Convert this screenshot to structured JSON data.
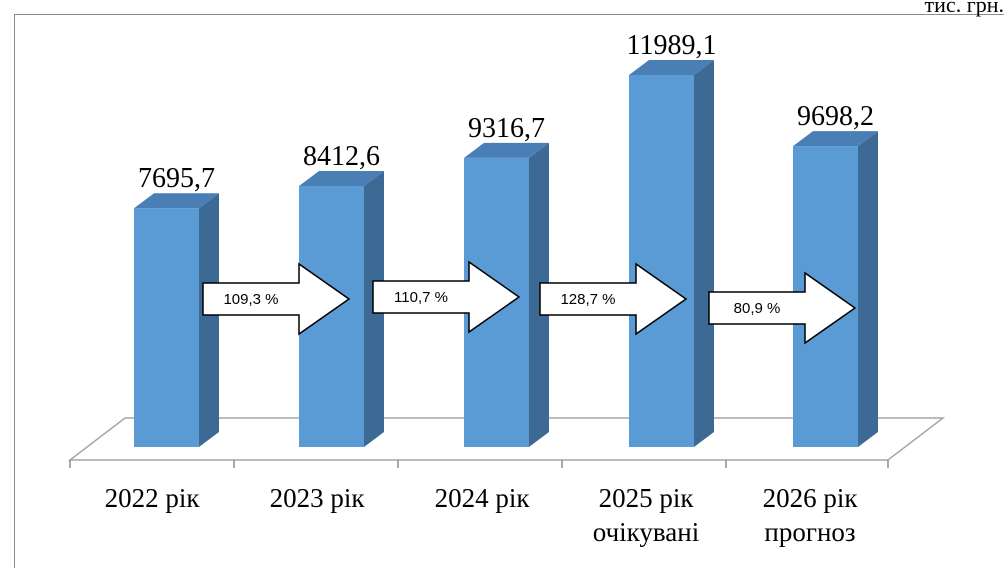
{
  "unit": "тис. грн.",
  "chart_data": {
    "type": "bar",
    "categories": [
      [
        "2022 рік"
      ],
      [
        "2023 рік"
      ],
      [
        "2024 рік"
      ],
      [
        "2025 рік",
        "очікувані"
      ],
      [
        "2026 рік",
        "прогноз"
      ]
    ],
    "values": [
      7695.7,
      8412.6,
      9316.7,
      11989.1,
      9698.2
    ],
    "value_labels": [
      "7695,7",
      "8412,6",
      "9316,7",
      "11989,1",
      "9698,2"
    ],
    "growth_rates": [
      "109,3 %",
      "110,7 %",
      "128,7 %",
      "80,9 %"
    ],
    "ylim": [
      0,
      13000
    ],
    "colors": {
      "bar_front": "#5b9bd5",
      "bar_side": "#3c6a94",
      "bar_top": "#4a7fb5"
    },
    "grid": false,
    "legend": "none",
    "style": "3d-column"
  }
}
